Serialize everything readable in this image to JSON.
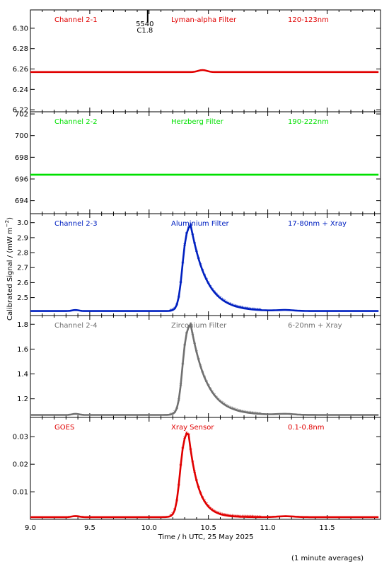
{
  "chart_data": {
    "type": "scatter",
    "ylabel": "Calibrated Signal / (mW m",
    "ylabel_exp": "−2",
    "ylabel_close": ")",
    "xlabel": "Time / h UTC, 25 May 2025",
    "footnote": "(1 minute averages)",
    "xlim": [
      9.0,
      11.95
    ],
    "xticks": [
      "9.0",
      "9.5",
      "10.0",
      "10.5",
      "11.0",
      "11.5"
    ],
    "annotation": {
      "line1": "5540",
      "line2": "C1.8",
      "x": 10.0
    },
    "panels": [
      {
        "channel": "Channel 2-1",
        "filter": "Lyman-alpha Filter",
        "band": "120-123nm",
        "color": "#e00000",
        "ylim": [
          6.218,
          6.318
        ],
        "yticks": [
          "6.22",
          "6.24",
          "6.26",
          "6.28",
          "6.30"
        ],
        "baseline": 6.257,
        "flare": "bump",
        "series": [
          {
            "x": 9.0,
            "y": 6.257
          },
          {
            "x": 9.4,
            "y": 6.257
          },
          {
            "x": 10.0,
            "y": 6.257
          },
          {
            "x": 10.45,
            "y": 6.259
          },
          {
            "x": 11.0,
            "y": 6.257
          },
          {
            "x": 11.95,
            "y": 6.257
          }
        ]
      },
      {
        "channel": "Channel 2-2",
        "filter": "Herzberg Filter",
        "band": "190-222nm",
        "color": "#00e000",
        "ylim": [
          692.8,
          702.2
        ],
        "yticks": [
          "694",
          "696",
          "698",
          "700",
          "702"
        ],
        "baseline": 696.4,
        "flare": "none",
        "series": [
          {
            "x": 9.0,
            "y": 696.4
          },
          {
            "x": 10.0,
            "y": 696.4
          },
          {
            "x": 11.0,
            "y": 696.4
          },
          {
            "x": 11.95,
            "y": 696.4
          }
        ]
      },
      {
        "channel": "Channel 2-3",
        "filter": "Aluminium Filter",
        "band": "17-80nm + Xray",
        "color": "#0020c0",
        "ylim": [
          2.38,
          3.06
        ],
        "yticks": [
          "2.5",
          "2.6",
          "2.7",
          "2.8",
          "2.9",
          "3.0"
        ],
        "baseline": 2.41,
        "peak": 2.995,
        "flare": "peak",
        "series": [
          {
            "x": 9.0,
            "y": 2.41
          },
          {
            "x": 10.2,
            "y": 2.42
          },
          {
            "x": 10.28,
            "y": 2.78
          },
          {
            "x": 10.35,
            "y": 2.995
          },
          {
            "x": 10.5,
            "y": 2.74
          },
          {
            "x": 10.7,
            "y": 2.52
          },
          {
            "x": 11.0,
            "y": 2.45
          },
          {
            "x": 11.95,
            "y": 2.41
          }
        ]
      },
      {
        "channel": "Channel 2-4",
        "filter": "Zirconium Filter",
        "band": "6-20nm + Xray",
        "color": "#707070",
        "ylim": [
          1.05,
          1.87
        ],
        "yticks": [
          "1.2",
          "1.4",
          "1.6",
          "1.8"
        ],
        "baseline": 1.07,
        "peak": 1.815,
        "flare": "peak",
        "series": [
          {
            "x": 9.0,
            "y": 1.07
          },
          {
            "x": 10.2,
            "y": 1.08
          },
          {
            "x": 10.28,
            "y": 1.5
          },
          {
            "x": 10.35,
            "y": 1.815
          },
          {
            "x": 10.5,
            "y": 1.45
          },
          {
            "x": 10.7,
            "y": 1.18
          },
          {
            "x": 11.0,
            "y": 1.1
          },
          {
            "x": 11.95,
            "y": 1.07
          }
        ]
      },
      {
        "channel": "GOES",
        "filter": "Xray Sensor",
        "band": "0.1-0.8nm",
        "color": "#e00000",
        "ylim": [
          0.0,
          0.037
        ],
        "yticks": [
          "0.01",
          "0.02",
          "0.03"
        ],
        "baseline": 0.0008,
        "peak": 0.0325,
        "flare": "peak",
        "series": [
          {
            "x": 9.0,
            "y": 0.0008
          },
          {
            "x": 10.2,
            "y": 0.001
          },
          {
            "x": 10.28,
            "y": 0.022
          },
          {
            "x": 10.33,
            "y": 0.0325
          },
          {
            "x": 10.5,
            "y": 0.012
          },
          {
            "x": 10.7,
            "y": 0.003
          },
          {
            "x": 11.0,
            "y": 0.0015
          },
          {
            "x": 11.95,
            "y": 0.0008
          }
        ]
      }
    ]
  }
}
